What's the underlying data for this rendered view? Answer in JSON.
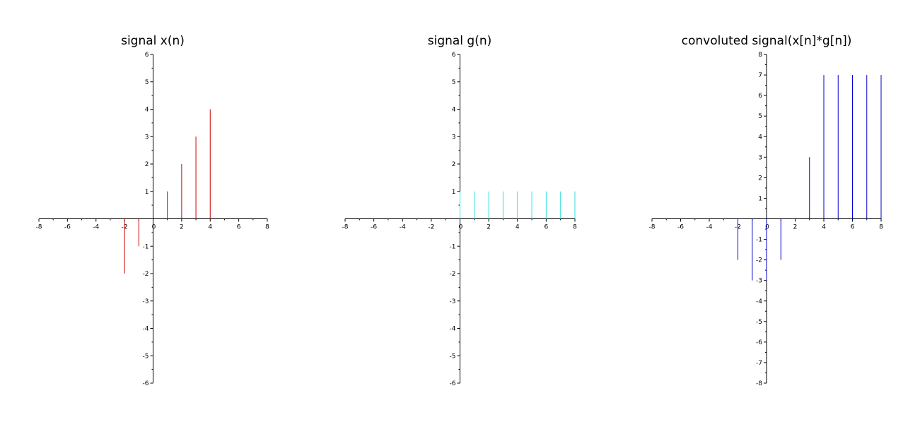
{
  "chart_data": [
    {
      "type": "stem",
      "title": "signal x(n)",
      "color": "#cc0000",
      "xlim": [
        -8,
        8
      ],
      "ylim": [
        -6,
        6
      ],
      "xticks": [
        -8,
        -6,
        -4,
        -2,
        0,
        2,
        4,
        6,
        8
      ],
      "yticks": [
        -6,
        -5,
        -4,
        -3,
        -2,
        -1,
        0,
        1,
        2,
        3,
        4,
        5,
        6
      ],
      "x": [
        -2,
        -1,
        0,
        1,
        2,
        3,
        4
      ],
      "y": [
        -2,
        -1,
        0,
        1,
        2,
        3,
        4
      ]
    },
    {
      "type": "stem",
      "title": "signal g(n)",
      "color": "#33e0e0",
      "xlim": [
        -8,
        8
      ],
      "ylim": [
        -6,
        6
      ],
      "xticks": [
        -8,
        -6,
        -4,
        -2,
        0,
        2,
        4,
        6,
        8
      ],
      "yticks": [
        -6,
        -5,
        -4,
        -3,
        -2,
        -1,
        0,
        1,
        2,
        3,
        4,
        5,
        6
      ],
      "x": [
        0,
        1,
        2,
        3,
        4,
        5,
        6,
        7,
        8
      ],
      "y": [
        1,
        1,
        1,
        1,
        1,
        1,
        1,
        1,
        1
      ]
    },
    {
      "type": "stem",
      "title": "convoluted signal(x[n]*g[n])",
      "color": "#0000cc",
      "xlim": [
        -8,
        8
      ],
      "ylim": [
        -8,
        8
      ],
      "xticks": [
        -8,
        -6,
        -4,
        -2,
        0,
        2,
        4,
        6,
        8
      ],
      "yticks": [
        -8,
        -7,
        -6,
        -5,
        -4,
        -3,
        -2,
        -1,
        0,
        1,
        2,
        3,
        4,
        5,
        6,
        7,
        8
      ],
      "x": [
        -2,
        -1,
        0,
        1,
        2,
        3,
        4,
        5,
        6,
        7,
        8
      ],
      "y": [
        -2,
        -3,
        -3,
        -2,
        0,
        3,
        7,
        7,
        7,
        7,
        7
      ]
    }
  ]
}
